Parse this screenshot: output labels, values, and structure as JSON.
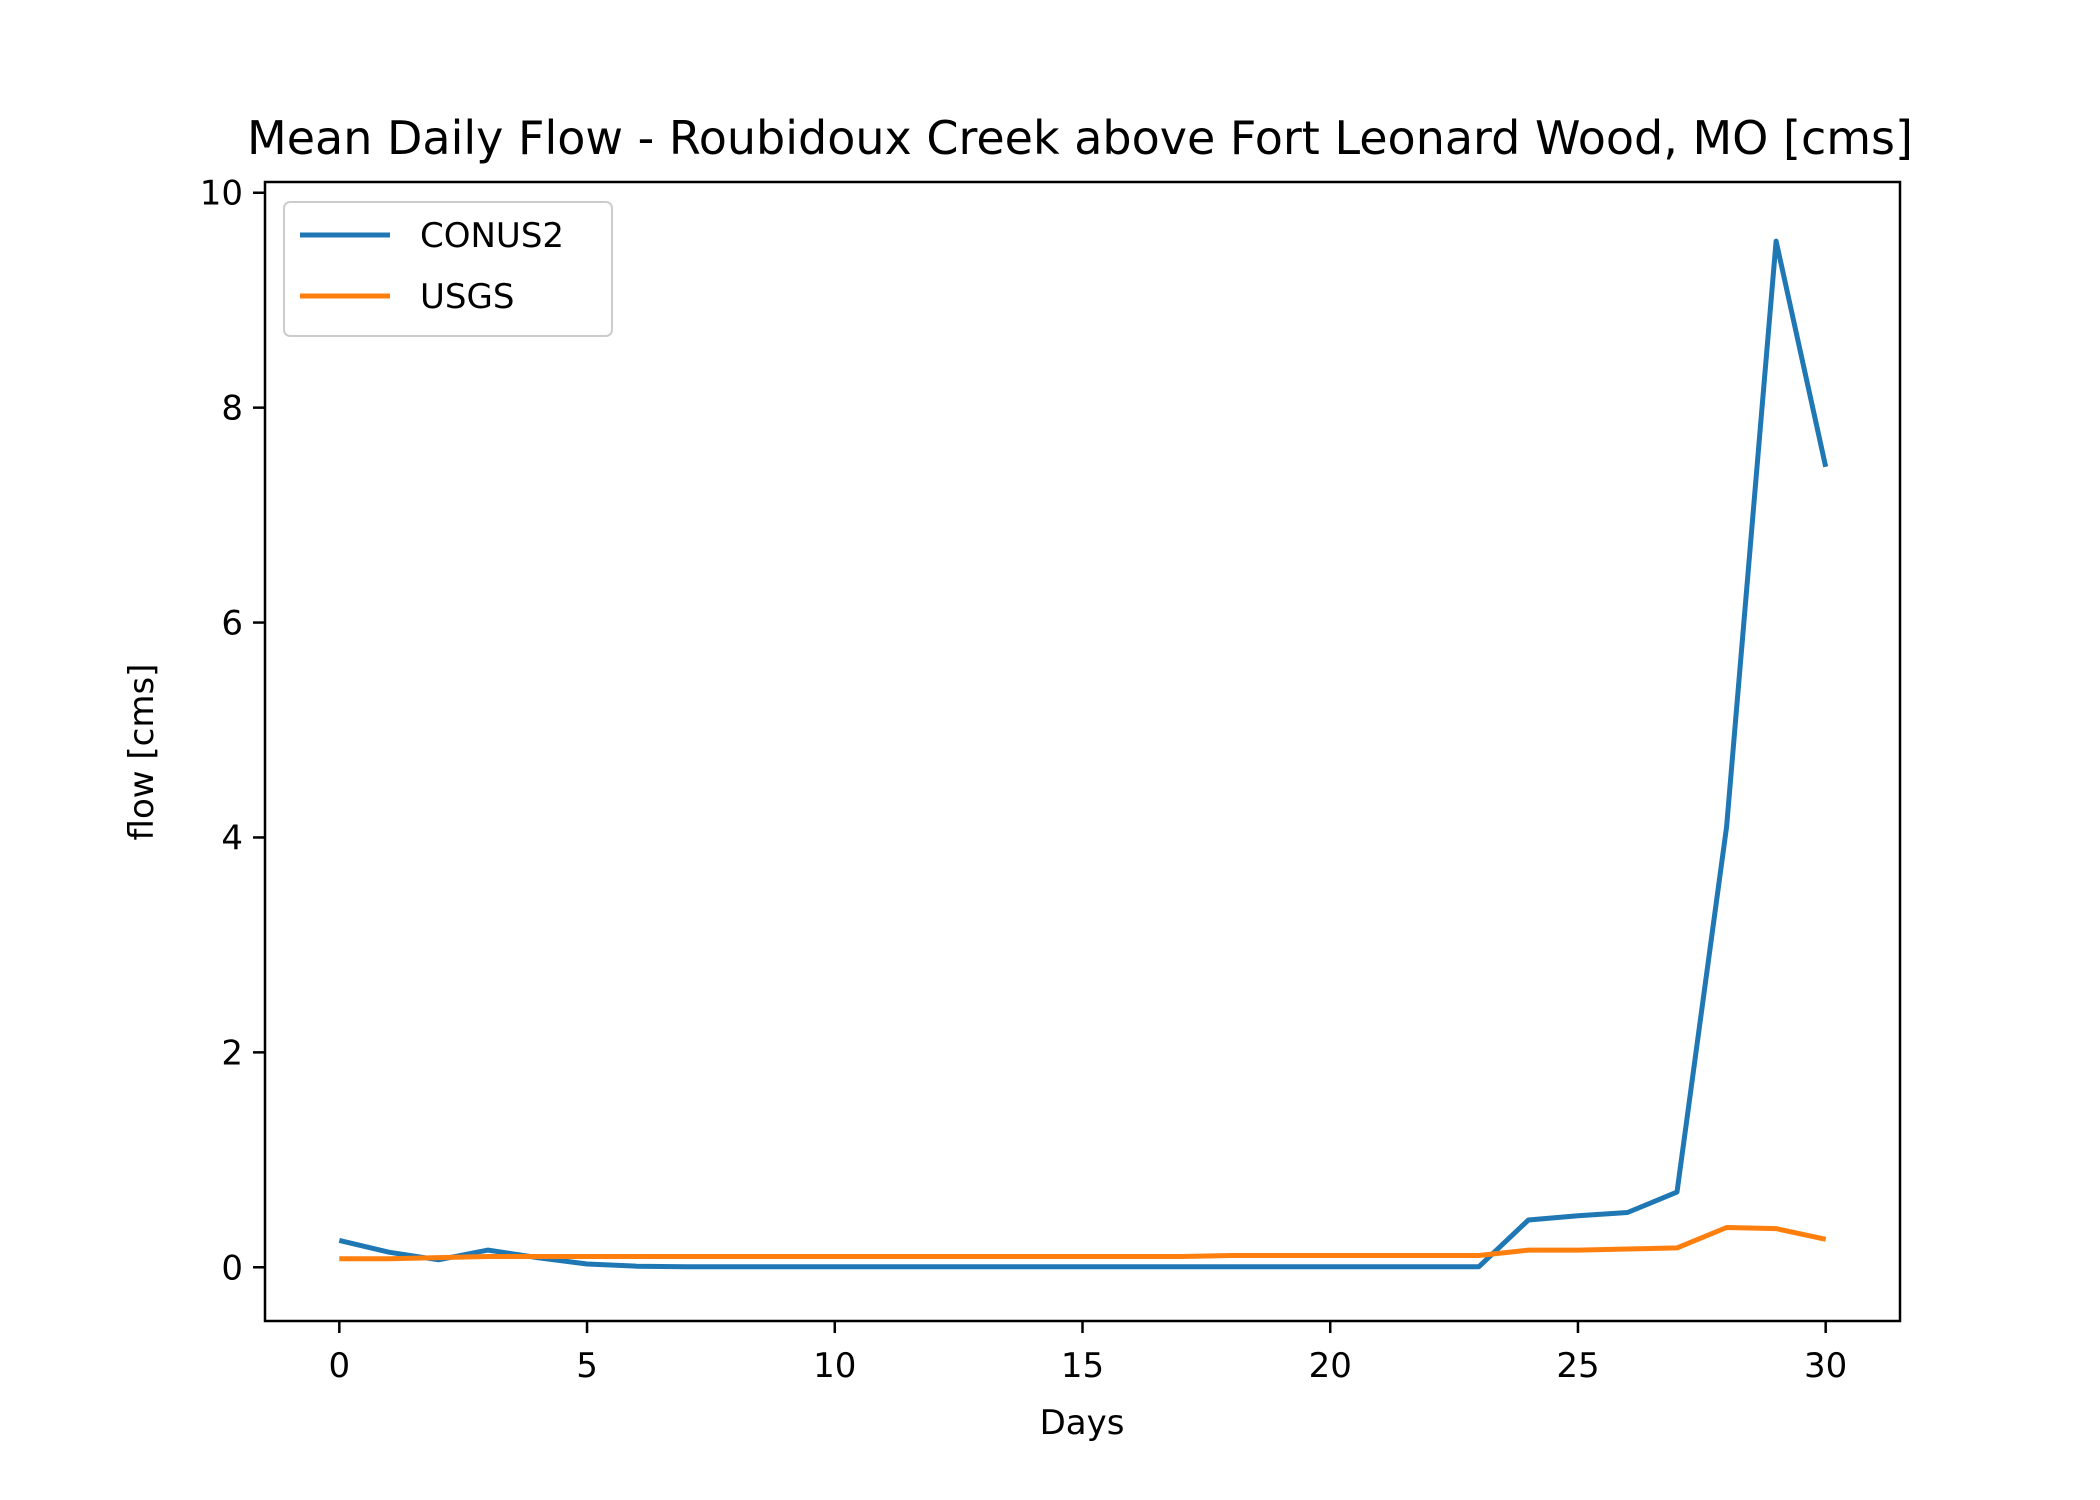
{
  "chart_data": {
    "type": "line",
    "title": "Mean Daily Flow - Roubidoux Creek above Fort Leonard Wood, MO [cms]",
    "xlabel": "Days",
    "ylabel": "flow [cms]",
    "xlim": [
      -1.5,
      31.5
    ],
    "ylim": [
      -0.5,
      10.1
    ],
    "xticks": [
      0,
      5,
      10,
      15,
      20,
      25,
      30
    ],
    "yticks": [
      0,
      2,
      4,
      6,
      8,
      10
    ],
    "x": [
      0,
      1,
      2,
      3,
      4,
      5,
      6,
      7,
      8,
      9,
      10,
      11,
      12,
      13,
      14,
      15,
      16,
      17,
      18,
      19,
      20,
      21,
      22,
      23,
      24,
      25,
      26,
      27,
      28,
      29,
      30
    ],
    "series": [
      {
        "name": "CONUS2",
        "color": "#1f77b4",
        "values": [
          0.25,
          0.14,
          0.07,
          0.16,
          0.09,
          0.03,
          0.01,
          0.005,
          0.005,
          0.005,
          0.005,
          0.005,
          0.005,
          0.005,
          0.005,
          0.005,
          0.005,
          0.005,
          0.005,
          0.005,
          0.005,
          0.005,
          0.005,
          0.005,
          0.44,
          0.48,
          0.51,
          0.7,
          4.1,
          9.55,
          7.45
        ]
      },
      {
        "name": "USGS",
        "color": "#ff7f0e",
        "values": [
          0.08,
          0.08,
          0.09,
          0.1,
          0.1,
          0.1,
          0.1,
          0.1,
          0.1,
          0.1,
          0.1,
          0.1,
          0.1,
          0.1,
          0.1,
          0.1,
          0.1,
          0.1,
          0.11,
          0.11,
          0.11,
          0.11,
          0.11,
          0.11,
          0.16,
          0.16,
          0.17,
          0.18,
          0.37,
          0.36,
          0.26
        ]
      }
    ],
    "legend_placement": "upper-left",
    "grid": false
  }
}
